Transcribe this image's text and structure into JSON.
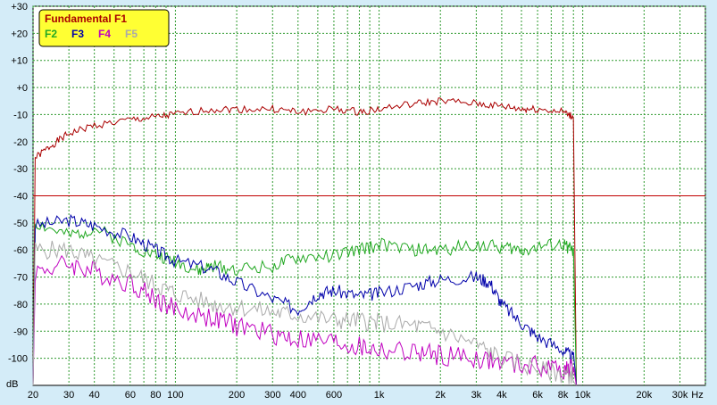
{
  "chart_data": {
    "type": "line",
    "title": "",
    "xlabel": "Hz",
    "ylabel": "dB",
    "xscale": "log",
    "xlim": [
      20,
      40000
    ],
    "ylim": [
      -110,
      30
    ],
    "grid": true,
    "legend_position": "top-left",
    "colors": {
      "background": "#d4ecf8",
      "plot_background": "#ffffff",
      "grid": "#2f9a2f",
      "legend_background": "#ffff33"
    },
    "x_ticks": [
      {
        "v": 20,
        "label": "20"
      },
      {
        "v": 30,
        "label": "30"
      },
      {
        "v": 40,
        "label": "40"
      },
      {
        "v": 60,
        "label": "60"
      },
      {
        "v": 80,
        "label": "80"
      },
      {
        "v": 100,
        "label": "100"
      },
      {
        "v": 200,
        "label": "200"
      },
      {
        "v": 300,
        "label": "300"
      },
      {
        "v": 400,
        "label": "400"
      },
      {
        "v": 600,
        "label": "600"
      },
      {
        "v": 1000,
        "label": "1k"
      },
      {
        "v": 2000,
        "label": "2k"
      },
      {
        "v": 3000,
        "label": "3k"
      },
      {
        "v": 4000,
        "label": "4k"
      },
      {
        "v": 6000,
        "label": "6k"
      },
      {
        "v": 8000,
        "label": "8k"
      },
      {
        "v": 10000,
        "label": "10k"
      },
      {
        "v": 20000,
        "label": "20k"
      },
      {
        "v": 30000,
        "label": "30k"
      },
      {
        "v": 40000,
        "label": "Hz"
      }
    ],
    "y_ticks": [
      {
        "v": 30,
        "label": "+30"
      },
      {
        "v": 20,
        "label": "+20"
      },
      {
        "v": 10,
        "label": "+10"
      },
      {
        "v": 0,
        "label": "+0"
      },
      {
        "v": -10,
        "label": "-10"
      },
      {
        "v": -20,
        "label": "-20"
      },
      {
        "v": -30,
        "label": "-30"
      },
      {
        "v": -40,
        "label": "-40"
      },
      {
        "v": -50,
        "label": "-50"
      },
      {
        "v": -60,
        "label": "-60"
      },
      {
        "v": -70,
        "label": "-70"
      },
      {
        "v": -80,
        "label": "-80"
      },
      {
        "v": -90,
        "label": "-90"
      },
      {
        "v": -100,
        "label": "-100"
      }
    ],
    "reference_line": {
      "y": -40,
      "color": "#c00000"
    },
    "legend": {
      "title": "Fundamental F1",
      "entries": [
        {
          "label": "F2",
          "color": "#22a822"
        },
        {
          "label": "F3",
          "color": "#0000aa"
        },
        {
          "label": "F4",
          "color": "#c000c0"
        },
        {
          "label": "F5",
          "color": "#aaaaaa"
        }
      ]
    },
    "series": [
      {
        "name": "Fundamental F1",
        "color": "#aa0000",
        "noise": 1.4,
        "seed": 1,
        "points": [
          [
            20,
            -110
          ],
          [
            20.5,
            -26
          ],
          [
            25,
            -21
          ],
          [
            30,
            -17
          ],
          [
            40,
            -14
          ],
          [
            60,
            -12
          ],
          [
            80,
            -11
          ],
          [
            100,
            -10
          ],
          [
            150,
            -8
          ],
          [
            200,
            -8
          ],
          [
            300,
            -8
          ],
          [
            400,
            -9
          ],
          [
            600,
            -8
          ],
          [
            800,
            -9
          ],
          [
            1000,
            -8
          ],
          [
            1500,
            -6
          ],
          [
            2000,
            -5
          ],
          [
            3000,
            -6
          ],
          [
            4000,
            -7
          ],
          [
            5000,
            -8
          ],
          [
            6000,
            -8
          ],
          [
            8000,
            -9
          ],
          [
            9000,
            -11
          ],
          [
            9300,
            -110
          ]
        ]
      },
      {
        "name": "F2",
        "color": "#22a822",
        "noise": 2.5,
        "seed": 2,
        "points": [
          [
            20,
            -110
          ],
          [
            20.5,
            -50
          ],
          [
            30,
            -55
          ],
          [
            40,
            -52
          ],
          [
            60,
            -58
          ],
          [
            80,
            -62
          ],
          [
            100,
            -64
          ],
          [
            130,
            -68
          ],
          [
            150,
            -66
          ],
          [
            200,
            -67
          ],
          [
            300,
            -66
          ],
          [
            400,
            -63
          ],
          [
            600,
            -62
          ],
          [
            800,
            -60
          ],
          [
            1000,
            -58
          ],
          [
            1500,
            -60
          ],
          [
            2000,
            -60
          ],
          [
            3000,
            -58
          ],
          [
            4000,
            -59
          ],
          [
            5000,
            -60
          ],
          [
            6000,
            -59
          ],
          [
            8000,
            -58
          ],
          [
            9000,
            -60
          ],
          [
            9300,
            -110
          ]
        ]
      },
      {
        "name": "F3",
        "color": "#0000aa",
        "noise": 2.5,
        "seed": 3,
        "points": [
          [
            20,
            -110
          ],
          [
            20.5,
            -51
          ],
          [
            30,
            -49
          ],
          [
            40,
            -51
          ],
          [
            60,
            -55
          ],
          [
            80,
            -60
          ],
          [
            100,
            -64
          ],
          [
            150,
            -67
          ],
          [
            200,
            -72
          ],
          [
            300,
            -78
          ],
          [
            400,
            -82
          ],
          [
            500,
            -76
          ],
          [
            600,
            -75
          ],
          [
            800,
            -77
          ],
          [
            1000,
            -76
          ],
          [
            1500,
            -73
          ],
          [
            2000,
            -71
          ],
          [
            3000,
            -70
          ],
          [
            3500,
            -72
          ],
          [
            4000,
            -80
          ],
          [
            5000,
            -87
          ],
          [
            6000,
            -92
          ],
          [
            8000,
            -97
          ],
          [
            9000,
            -100
          ],
          [
            9300,
            -110
          ]
        ]
      },
      {
        "name": "F4",
        "color": "#c000c0",
        "noise": 4.0,
        "seed": 4,
        "points": [
          [
            20,
            -110
          ],
          [
            20.5,
            -68
          ],
          [
            30,
            -65
          ],
          [
            40,
            -68
          ],
          [
            60,
            -72
          ],
          [
            80,
            -78
          ],
          [
            100,
            -82
          ],
          [
            150,
            -85
          ],
          [
            200,
            -88
          ],
          [
            300,
            -91
          ],
          [
            400,
            -93
          ],
          [
            600,
            -94
          ],
          [
            800,
            -96
          ],
          [
            1000,
            -97
          ],
          [
            1500,
            -98
          ],
          [
            2000,
            -99
          ],
          [
            3000,
            -100
          ],
          [
            4000,
            -102
          ],
          [
            6000,
            -103
          ],
          [
            8000,
            -104
          ],
          [
            9000,
            -104
          ],
          [
            9300,
            -110
          ]
        ]
      },
      {
        "name": "F5",
        "color": "#aaaaaa",
        "noise": 3.5,
        "seed": 5,
        "points": [
          [
            20,
            -110
          ],
          [
            20.5,
            -60
          ],
          [
            30,
            -60
          ],
          [
            40,
            -64
          ],
          [
            60,
            -68
          ],
          [
            80,
            -73
          ],
          [
            100,
            -76
          ],
          [
            150,
            -80
          ],
          [
            200,
            -81
          ],
          [
            300,
            -83
          ],
          [
            400,
            -84
          ],
          [
            600,
            -86
          ],
          [
            800,
            -86
          ],
          [
            1000,
            -87
          ],
          [
            1500,
            -88
          ],
          [
            2000,
            -90
          ],
          [
            3000,
            -95
          ],
          [
            4000,
            -100
          ],
          [
            6000,
            -104
          ],
          [
            8000,
            -106
          ],
          [
            9000,
            -106
          ],
          [
            9300,
            -110
          ]
        ]
      }
    ]
  }
}
